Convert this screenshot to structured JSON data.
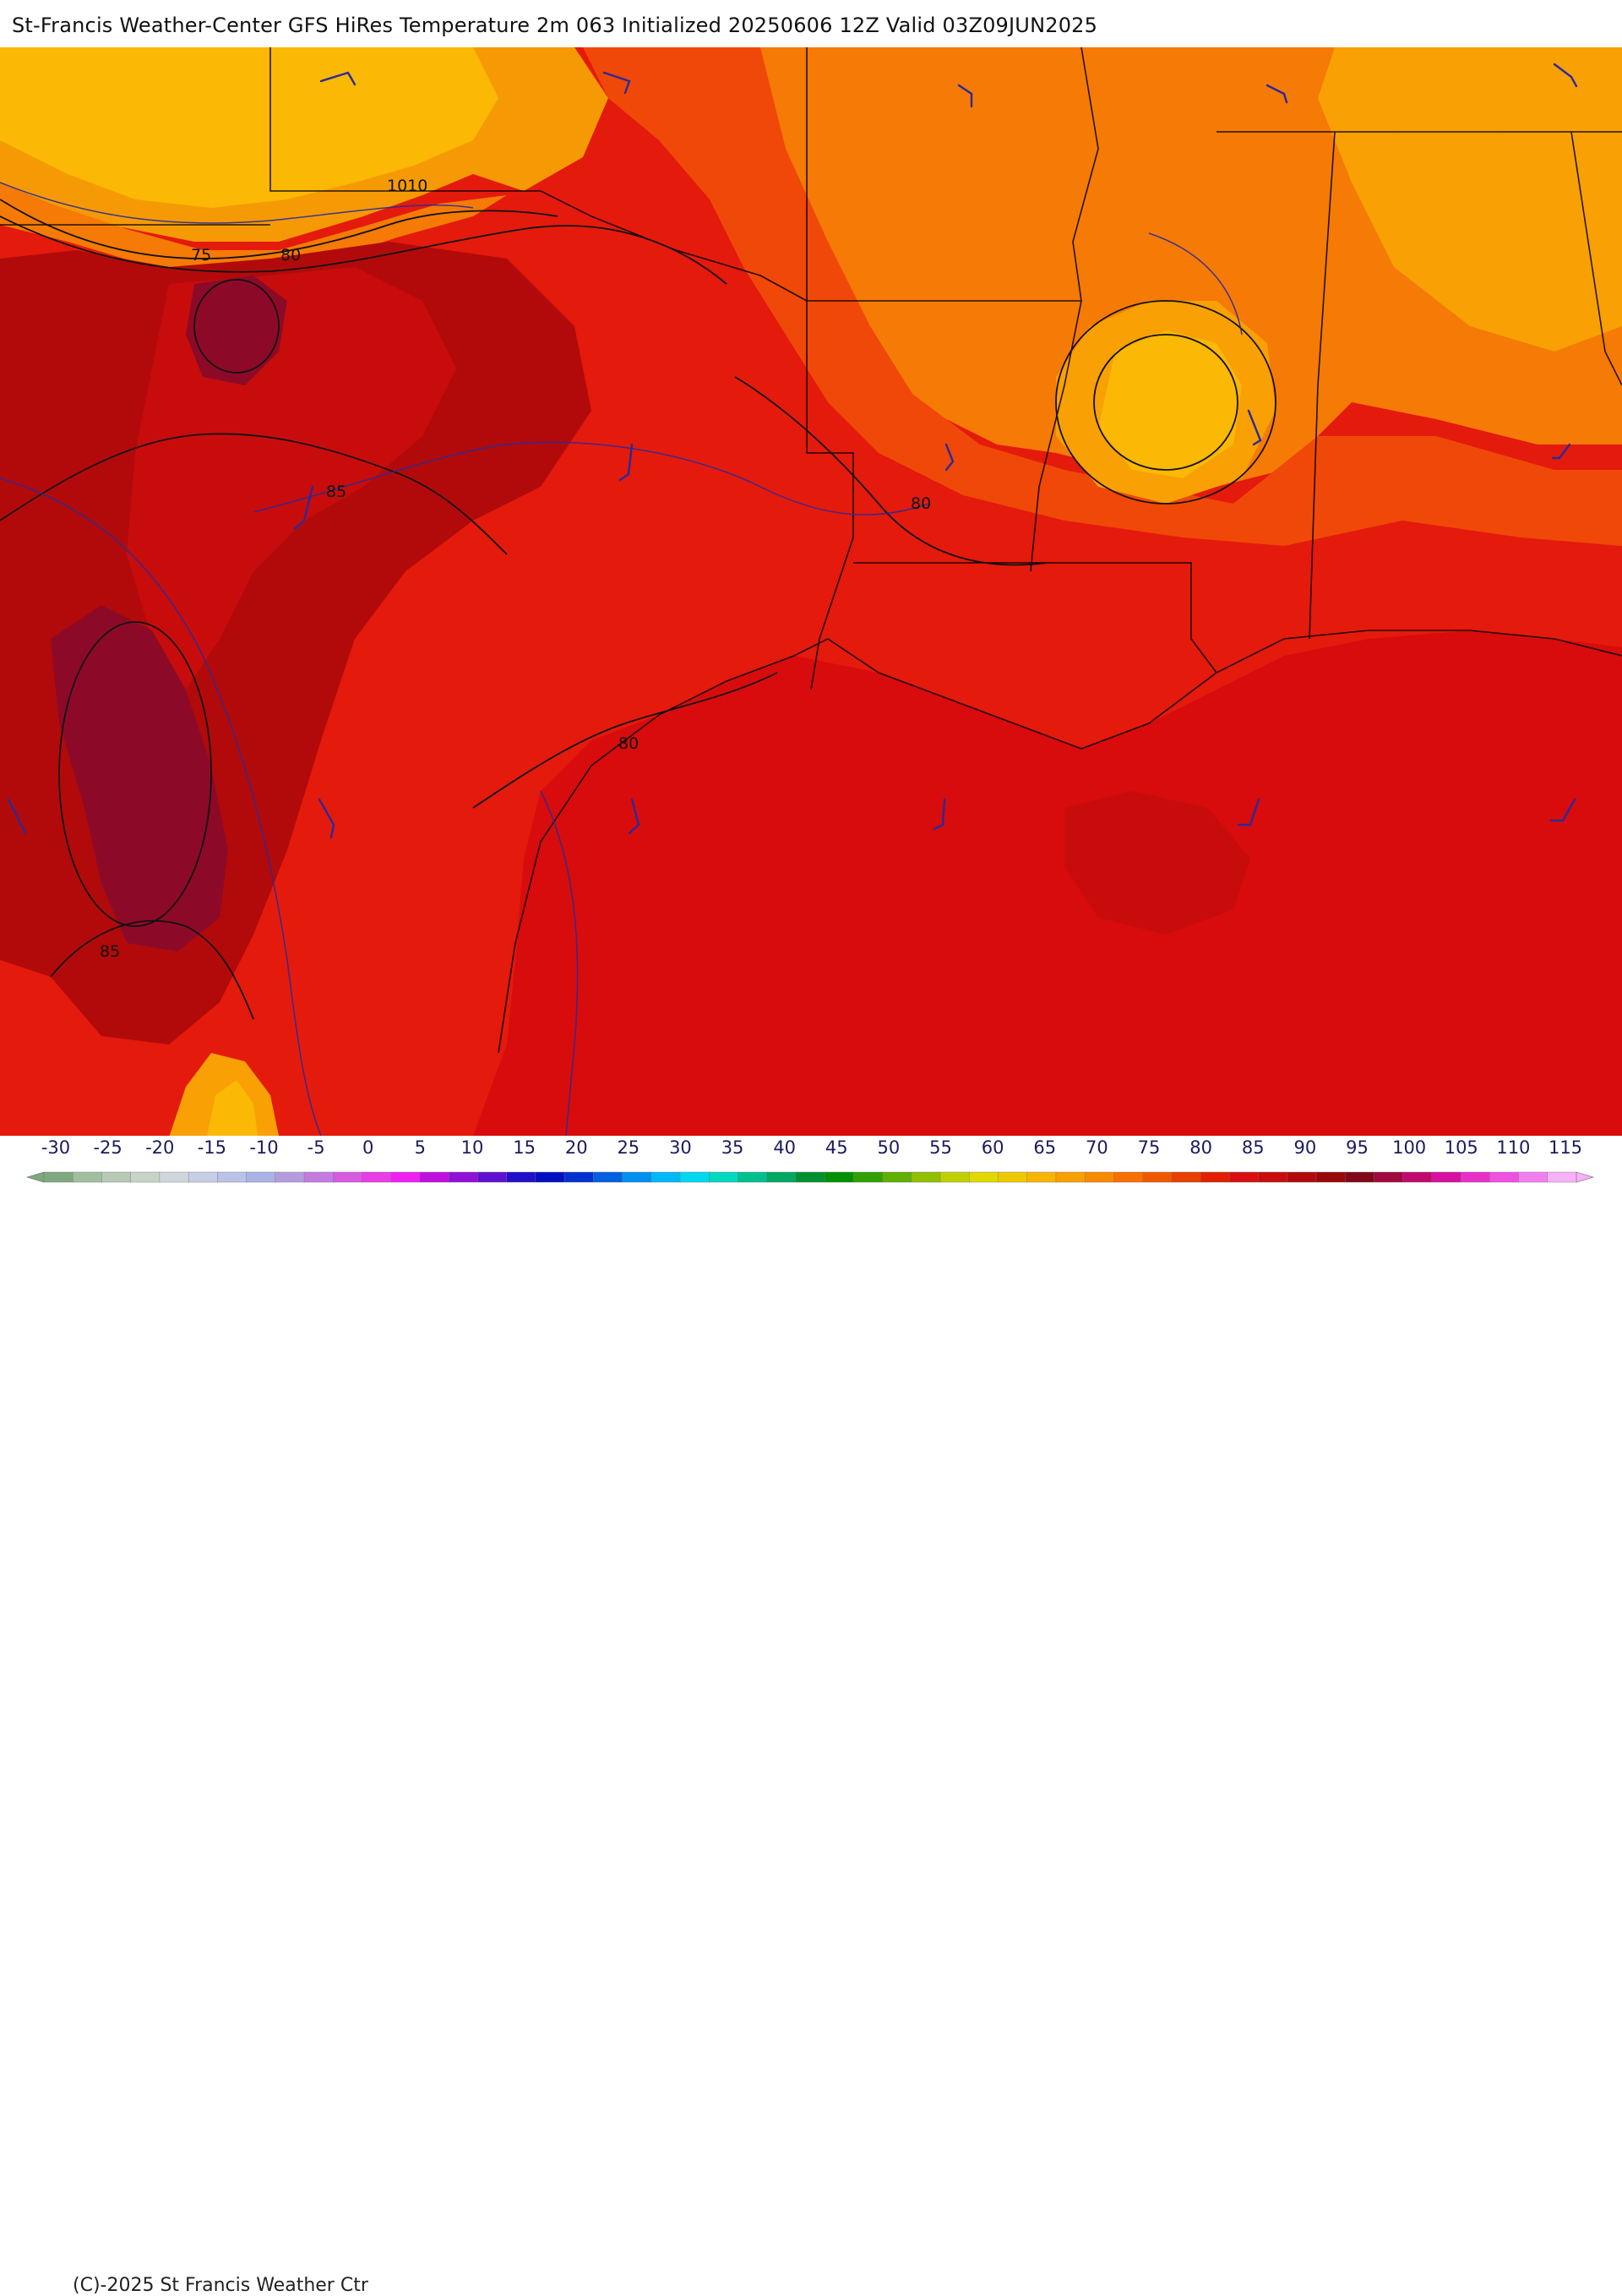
{
  "title": "St-Francis Weather-Center GFS HiRes Temperature 2m  063 Initialized 20250606 12Z Valid 03Z09JUN2025",
  "copyright": "(C)-2025 St Francis Weather Ctr",
  "contour_labels": [
    "1010",
    "75",
    "80",
    "85",
    "80",
    "80",
    "85"
  ],
  "colorbar": {
    "ticks": [
      "-30",
      "-25",
      "-20",
      "-15",
      "-10",
      "-5",
      "0",
      "5",
      "10",
      "15",
      "20",
      "25",
      "30",
      "35",
      "40",
      "45",
      "50",
      "55",
      "60",
      "65",
      "70",
      "75",
      "80",
      "85",
      "90",
      "95",
      "100",
      "105",
      "110",
      "115"
    ],
    "colors": [
      "#7fa87f",
      "#9fbf9f",
      "#b5c9b5",
      "#c7d3c7",
      "#cfd6dc",
      "#c6cde6",
      "#b9c2e8",
      "#a9b3e6",
      "#b49be0",
      "#c47be0",
      "#d65be0",
      "#e83ee6",
      "#f020f0",
      "#c010e0",
      "#9010d8",
      "#6010d0",
      "#2010c8",
      "#0010c0",
      "#0030d0",
      "#0060e0",
      "#0090f0",
      "#00b8f8",
      "#00d8f0",
      "#00d8c0",
      "#00c090",
      "#00a860",
      "#009030",
      "#009000",
      "#30a000",
      "#60b000",
      "#90c000",
      "#c0d000",
      "#e0d800",
      "#f0c800",
      "#f8b400",
      "#f8a000",
      "#f88a00",
      "#f87000",
      "#f05800",
      "#e84000",
      "#e02000",
      "#d81010",
      "#c80c0c",
      "#b00a0a",
      "#980808",
      "#800818",
      "#a00840",
      "#c00870",
      "#d810a0",
      "#e830c8",
      "#f050e0",
      "#f080f0",
      "#f8b0f8"
    ]
  },
  "colors": {
    "hot_core": "#8c0a28",
    "very_hot": "#b20a0a",
    "hot": "#d80c0c",
    "warm": "#ee1a0a",
    "orange_red": "#f04808",
    "orange": "#f57a06",
    "amber": "#f8a004",
    "yellow": "#fbb804",
    "state_line": "#000000",
    "isobar": "#2a2a9a",
    "wind_barb": "#2a2a9a"
  }
}
